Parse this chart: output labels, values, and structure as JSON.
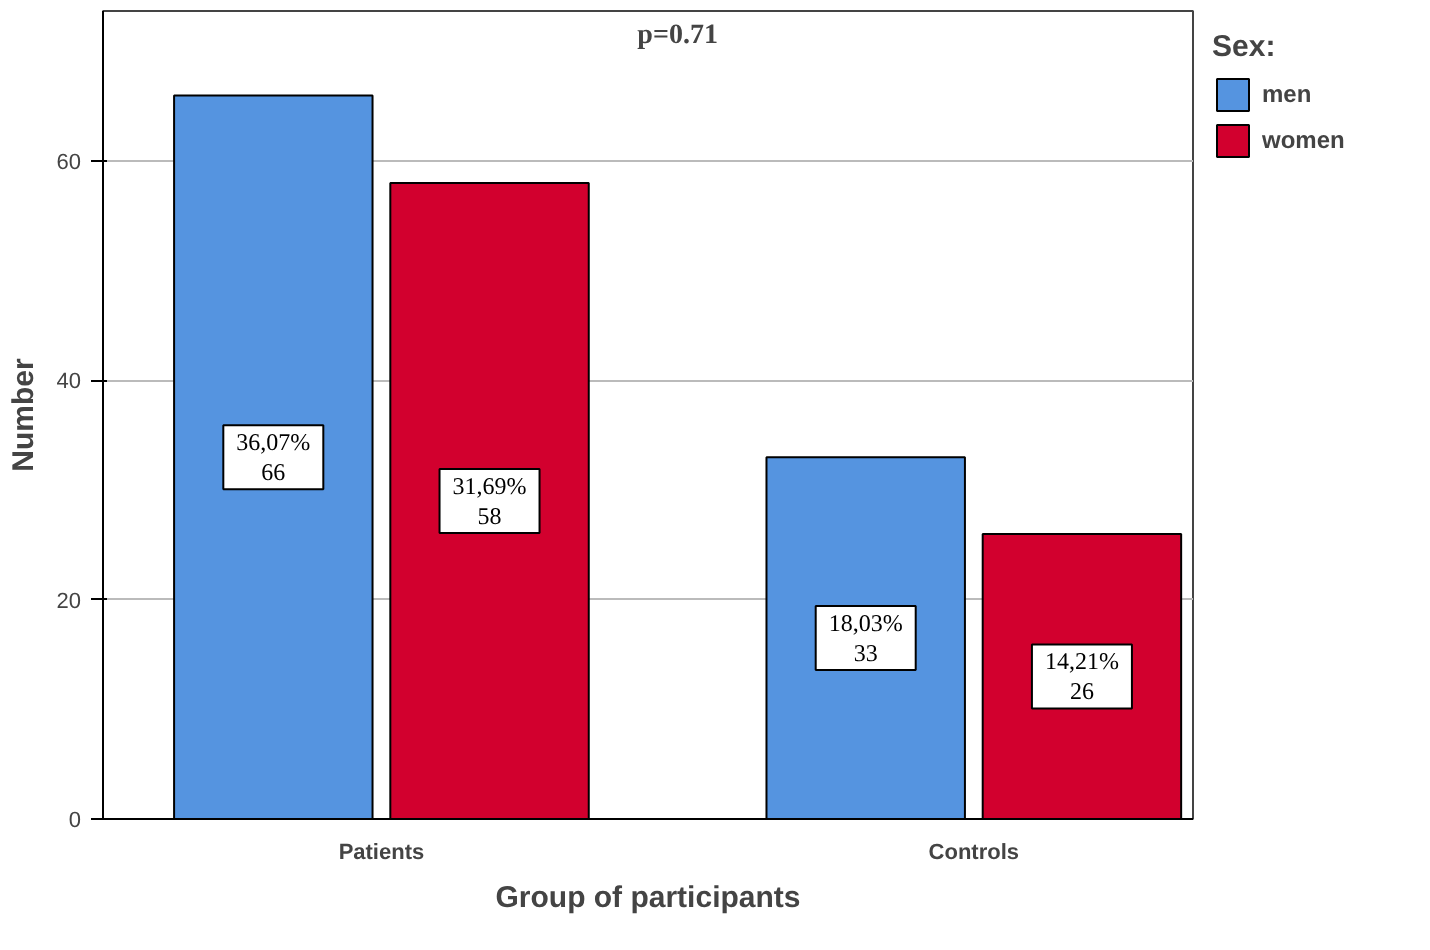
{
  "chart_data": {
    "type": "bar",
    "xlabel": "Group of participants",
    "ylabel": "Number",
    "legend_title": "Sex:",
    "categories": [
      "Patients",
      "Controls"
    ],
    "series": [
      {
        "name": "men",
        "color": "#5594e0",
        "values": [
          66,
          33
        ],
        "value_labels": [
          "36,07%\n66",
          "18,03%\n33"
        ]
      },
      {
        "name": "women",
        "color": "#d2002e",
        "values": [
          58,
          26
        ],
        "value_labels": [
          "31,69%\n58",
          "14,21%\n26"
        ]
      }
    ],
    "ylim": [
      0,
      73.7
    ],
    "yticks": [
      0,
      20,
      40,
      60
    ],
    "grid": "y",
    "legend": "top right",
    "annotations": [
      "p=0.71"
    ]
  }
}
